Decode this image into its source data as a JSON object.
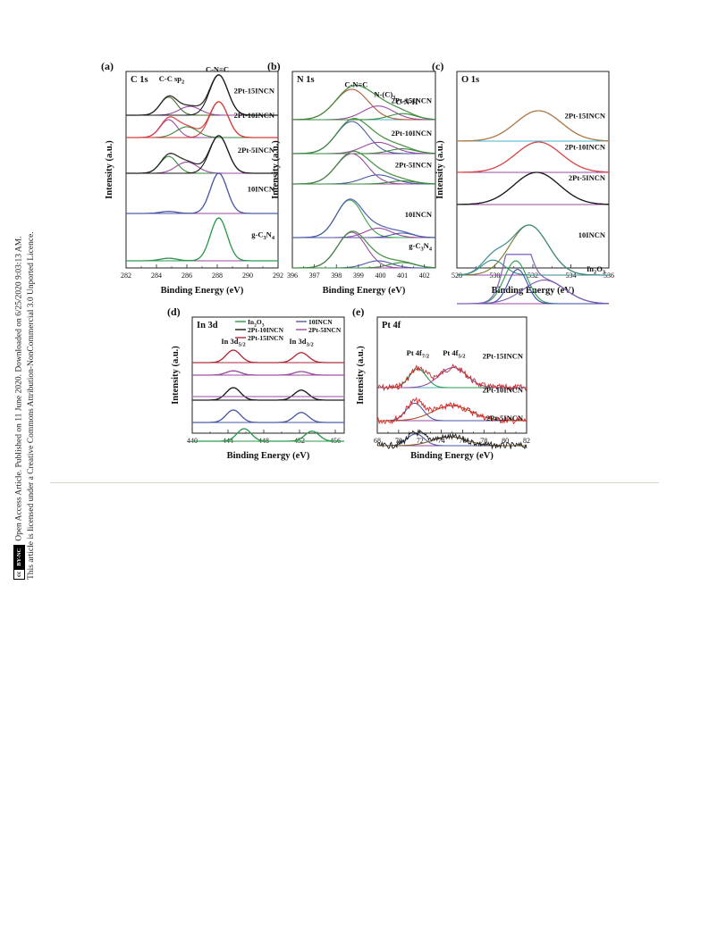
{
  "side_note": {
    "line1": "Open Access Article. Published on 11 June 2020. Downloaded on 6/25/2020 9:03:13 AM.",
    "line2": "This article is licensed under a Creative Commons Attribution-NonCommercial 3.0 Unported Licence.",
    "badge_cc": "cc",
    "badge_by": "BY-NC"
  },
  "chart_data": [
    {
      "type": "line",
      "panel": "(a)",
      "element": "C 1s",
      "xlabel": "Binding Energy (eV)",
      "ylabel": "Intensity (a.u.)",
      "xlim": [
        282,
        292
      ],
      "xticks": [
        282,
        284,
        286,
        288,
        290,
        292
      ],
      "reversed": false,
      "stacks": [
        {
          "name": "2Pt-15INCN",
          "peaks": [
            {
              "c": 284.8,
              "h": 0.45,
              "w": 0.55,
              "color": "#4a6a2a"
            },
            {
              "c": 286.2,
              "h": 0.22,
              "w": 0.7,
              "color": "#9a4aa0"
            },
            {
              "c": 288.1,
              "h": 1.0,
              "w": 0.6,
              "color": "#1a1a1a"
            }
          ]
        },
        {
          "name": "2Pt-10INCN",
          "peaks": [
            {
              "c": 284.8,
              "h": 0.5,
              "w": 0.55,
              "color": "#9a4aa0"
            },
            {
              "c": 286.0,
              "h": 0.3,
              "w": 0.7,
              "color": "#3a8a3a"
            },
            {
              "c": 288.1,
              "h": 1.0,
              "w": 0.6,
              "color": "#d43a3a"
            }
          ]
        },
        {
          "name": "2Pt-5INCN",
          "peaks": [
            {
              "c": 284.8,
              "h": 0.45,
              "w": 0.55,
              "color": "#3a8a3a"
            },
            {
              "c": 286.0,
              "h": 0.3,
              "w": 0.7,
              "color": "#9a4aa0"
            },
            {
              "c": 288.1,
              "h": 1.0,
              "w": 0.6,
              "color": "#1a1a1a"
            }
          ]
        },
        {
          "name": "10INCN",
          "peaks": [
            {
              "c": 284.8,
              "h": 0.05,
              "w": 0.55,
              "color": "#9a4aa0"
            },
            {
              "c": 288.1,
              "h": 1.0,
              "w": 0.55,
              "color": "#4a5aa8"
            }
          ]
        },
        {
          "name": "g-C3N4",
          "peaks": [
            {
              "c": 284.8,
              "h": 0.06,
              "w": 0.55,
              "color": "#9a4aa0"
            },
            {
              "c": 288.1,
              "h": 1.0,
              "w": 0.55,
              "color": "#2a9a4a"
            }
          ]
        }
      ],
      "annotations": [
        {
          "text": "C-C sp2",
          "x": 285.0,
          "stack": 0,
          "level": 0.85
        },
        {
          "text": "C-N=C",
          "x": 288.0,
          "stack": 0,
          "level": 1.08
        }
      ]
    },
    {
      "type": "line",
      "panel": "(b)",
      "element": "N 1s",
      "xlabel": "Binding Energy (eV)",
      "ylabel": "Intensity (a.u.)",
      "xlim": [
        396,
        402.5
      ],
      "xticks": [
        396,
        397,
        398,
        399,
        400,
        401,
        402
      ],
      "reversed": false,
      "stacks": [
        {
          "name": "2Pt-15INCN",
          "peaks": [
            {
              "c": 398.7,
              "h": 1.0,
              "w": 0.75,
              "color": "#b05a3a"
            },
            {
              "c": 399.9,
              "h": 0.45,
              "w": 0.7,
              "color": "#9a4aa0"
            },
            {
              "c": 401.0,
              "h": 0.2,
              "w": 0.6,
              "color": "#3a8a3a"
            }
          ]
        },
        {
          "name": "2Pt-10INCN",
          "peaks": [
            {
              "c": 398.7,
              "h": 1.0,
              "w": 0.7,
              "color": "#4a5aa8"
            },
            {
              "c": 399.9,
              "h": 0.35,
              "w": 0.7,
              "color": "#9a4aa0"
            },
            {
              "c": 401.0,
              "h": 0.15,
              "w": 0.6,
              "color": "#3a8a3a"
            }
          ]
        },
        {
          "name": "2Pt-5INCN",
          "peaks": [
            {
              "c": 398.7,
              "h": 1.0,
              "w": 0.7,
              "color": "#9a4aa0"
            },
            {
              "c": 399.9,
              "h": 0.3,
              "w": 0.7,
              "color": "#4a5aa8"
            },
            {
              "c": 401.0,
              "h": 0.1,
              "w": 0.6,
              "color": "#3a8a3a"
            }
          ]
        },
        {
          "name": "10INCN",
          "peaks": [
            {
              "c": 398.6,
              "h": 1.0,
              "w": 0.6,
              "color": "#3aa84a"
            },
            {
              "c": 399.9,
              "h": 0.25,
              "w": 0.6,
              "color": "#9a4aa0"
            },
            {
              "c": 401.0,
              "h": 0.12,
              "w": 0.5,
              "color": "#4a5aa8"
            }
          ]
        },
        {
          "name": "g-C3N4",
          "peaks": [
            {
              "c": 398.7,
              "h": 1.0,
              "w": 0.65,
              "color": "#9a4aa0"
            },
            {
              "c": 399.9,
              "h": 0.2,
              "w": 0.6,
              "color": "#4a5aa8"
            },
            {
              "c": 401.0,
              "h": 0.15,
              "w": 0.6,
              "color": "#3a8a3a"
            }
          ]
        }
      ],
      "annotations": [
        {
          "text": "C-N=C",
          "x": 398.9,
          "stack": 0,
          "level": 1.08
        },
        {
          "text": "N-(C)3",
          "x": 400.2,
          "stack": 0,
          "level": 0.75
        },
        {
          "text": "C-N-H",
          "x": 401.2,
          "stack": 0,
          "level": 0.5
        }
      ]
    },
    {
      "type": "line",
      "panel": "(c)",
      "element": "O 1s",
      "xlabel": "Binding Energy (eV)",
      "ylabel": "Intensity (a.u.)",
      "xlim": [
        528,
        536
      ],
      "xticks": [
        528,
        530,
        532,
        534,
        536
      ],
      "reversed": false,
      "stacks": [
        {
          "name": "2Pt-15INCN",
          "peaks": [
            {
              "c": 532.3,
              "h": 1.0,
              "w": 1.2,
              "color": "#b07a4a"
            }
          ]
        },
        {
          "name": "2Pt-10INCN",
          "peaks": [
            {
              "c": 532.3,
              "h": 1.0,
              "w": 1.2,
              "color": "#d84a4a"
            }
          ]
        },
        {
          "name": "2Pt-5INCN",
          "peaks": [
            {
              "c": 532.2,
              "h": 1.0,
              "w": 1.2,
              "color": "#1a1a1a"
            }
          ]
        },
        {
          "name": "10INCN",
          "peaks": [
            {
              "c": 531.8,
              "h": 1.0,
              "w": 1.0,
              "color": "#7a7a2a"
            },
            {
              "c": 529.9,
              "h": 0.3,
              "w": 0.6,
              "color": "#3a8a8a"
            }
          ]
        },
        {
          "name": "In2O3",
          "peaks": [
            {
              "c": 531.1,
              "h": 1.0,
              "w": 0.6,
              "color": "#2a9a4a"
            },
            {
              "c": 531.2,
              "h": 0.8,
              "w": 0.5,
              "color": "#3a4aa8"
            },
            {
              "c": 532.6,
              "h": 0.55,
              "w": 1.1,
              "color": "#7a5ab0"
            }
          ]
        }
      ],
      "annotations": []
    },
    {
      "type": "line",
      "panel": "(d)",
      "element": "In 3d",
      "xlabel": "Binding Energy (eV)",
      "ylabel": "Intensity (a.u.)",
      "xlim": [
        440,
        457
      ],
      "xticks": [
        440,
        444,
        448,
        452,
        456
      ],
      "reversed": false,
      "legend": [
        {
          "name": "In2O3",
          "color": "#2a9a4a"
        },
        {
          "name": "10INCN",
          "color": "#4a5aa8"
        },
        {
          "name": "2Pt-10INCN",
          "color": "#1a1a1a"
        },
        {
          "name": "2Pt-5INCN",
          "color": "#9a4aa0"
        },
        {
          "name": "2Pt-15INCN",
          "color": "#b02a3a"
        }
      ],
      "stacks": [
        {
          "name": "2Pt-15INCN",
          "peaks": [
            {
              "c": 444.6,
              "h": 1.0,
              "w": 0.8,
              "color": "#b02a3a"
            },
            {
              "c": 452.2,
              "h": 0.8,
              "w": 0.8,
              "color": "#b02a3a"
            }
          ]
        },
        {
          "name": "2Pt-5INCN",
          "peaks": [
            {
              "c": 444.6,
              "h": 0.6,
              "w": 0.8,
              "color": "#9a4aa0"
            },
            {
              "c": 452.2,
              "h": 0.5,
              "w": 0.8,
              "color": "#9a4aa0"
            }
          ]
        },
        {
          "name": "2Pt-10INCN",
          "peaks": [
            {
              "c": 444.6,
              "h": 1.0,
              "w": 0.8,
              "color": "#1a1a1a"
            },
            {
              "c": 452.2,
              "h": 0.8,
              "w": 0.8,
              "color": "#1a1a1a"
            }
          ]
        },
        {
          "name": "2Pt-5INCN",
          "peaks": [
            {
              "c": 444.6,
              "h": 0.0,
              "w": 0.8,
              "color": "#d43a3a"
            }
          ]
        },
        {
          "name": "10INCN",
          "peaks": [
            {
              "c": 444.6,
              "h": 1.0,
              "w": 0.8,
              "color": "#4a5aa8"
            },
            {
              "c": 452.2,
              "h": 0.8,
              "w": 0.8,
              "color": "#4a5aa8"
            }
          ]
        },
        {
          "name": "In2O3",
          "peaks": [
            {
              "c": 445.8,
              "h": 1.0,
              "w": 0.8,
              "color": "#2a9a4a"
            },
            {
              "c": 453.4,
              "h": 0.8,
              "w": 0.8,
              "color": "#2a9a4a"
            }
          ]
        }
      ],
      "annotations": [
        {
          "text": "In 3d5/2",
          "x": 444.6,
          "stack": 0,
          "level": 1.5
        },
        {
          "text": "In 3d3/2",
          "x": 452.2,
          "stack": 0,
          "level": 1.5
        }
      ]
    },
    {
      "type": "line",
      "panel": "(e)",
      "element": "Pt 4f",
      "xlabel": "Binding Energy (eV)",
      "ylabel": "Intensity (a.u.)",
      "xlim": [
        68,
        82
      ],
      "xticks": [
        68,
        70,
        72,
        74,
        76,
        78,
        80,
        82
      ],
      "reversed": false,
      "stacks": [
        {
          "name": "2Pt-15INCN",
          "peaks": [
            {
              "c": 71.8,
              "h": 0.7,
              "w": 0.8,
              "color": "#2a9a4a"
            },
            {
              "c": 75.1,
              "h": 0.75,
              "w": 1.3,
              "color": "#9a4aa0"
            }
          ],
          "noise_color": "#c02a2a"
        },
        {
          "name": "2Pt-10INCN",
          "peaks": [
            {
              "c": 71.5,
              "h": 0.7,
              "w": 0.8,
              "color": "#4a5aa8"
            },
            {
              "c": 75.0,
              "h": 0.6,
              "w": 1.8,
              "color": "#b0502a"
            }
          ],
          "noise_color": "#d42a2a"
        },
        {
          "name": "2Pt-5INCN",
          "peaks": [
            {
              "c": 71.6,
              "h": 0.6,
              "w": 0.8,
              "color": "#4a5aa8"
            },
            {
              "c": 74.8,
              "h": 0.45,
              "w": 1.6,
              "color": "#7a5a2a"
            }
          ],
          "noise_color": "#1a1a1a"
        }
      ],
      "annotations": [
        {
          "text": "Pt 4f7/2",
          "x": 71.8,
          "stack": 0,
          "level": 1.2
        },
        {
          "text": "Pt 4f5/2",
          "x": 75.2,
          "stack": 0,
          "level": 1.2
        }
      ]
    }
  ]
}
